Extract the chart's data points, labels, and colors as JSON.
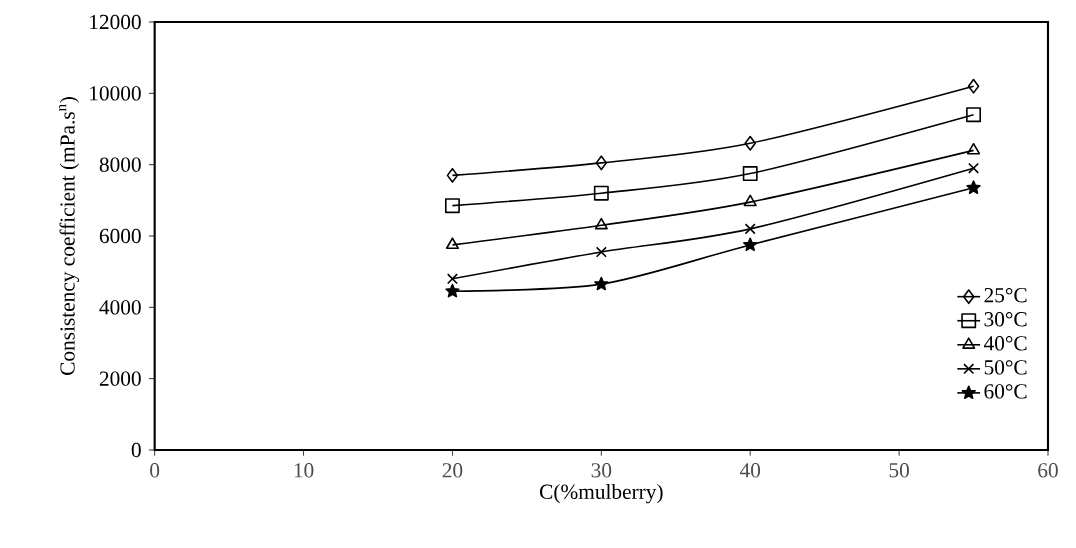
{
  "chart_data": {
    "type": "line",
    "xlabel": "C(%mulberry)",
    "ylabel": "Consistency coefficient (mPa.s$^{n}$)",
    "x": [
      20,
      30,
      40,
      55
    ],
    "series": [
      {
        "name": "25°C",
        "color": "#000000",
        "marker": "diamond",
        "values": [
          7700,
          8050,
          8600,
          10200
        ]
      },
      {
        "name": "30°C",
        "color": "#000000",
        "marker": "square",
        "values": [
          6850,
          7200,
          7750,
          9400
        ]
      },
      {
        "name": "40°C",
        "color": "#000000",
        "marker": "triangle",
        "values": [
          5750,
          6300,
          6950,
          8400
        ]
      },
      {
        "name": "50°C",
        "color": "#000000",
        "marker": "cross",
        "values": [
          4800,
          5550,
          6200,
          7900
        ]
      },
      {
        "name": "60°C",
        "color": "#000000",
        "marker": "star",
        "values": [
          4450,
          4650,
          5750,
          7350
        ]
      }
    ],
    "xlim": [
      0,
      60
    ],
    "xticks": [
      0,
      10,
      20,
      30,
      40,
      50,
      60
    ],
    "ylim": [
      0,
      12000
    ],
    "yticks": [
      0,
      2000,
      4000,
      6000,
      8000,
      10000,
      12000
    ],
    "grid": false,
    "legend": "right",
    "line_style": "solid"
  }
}
